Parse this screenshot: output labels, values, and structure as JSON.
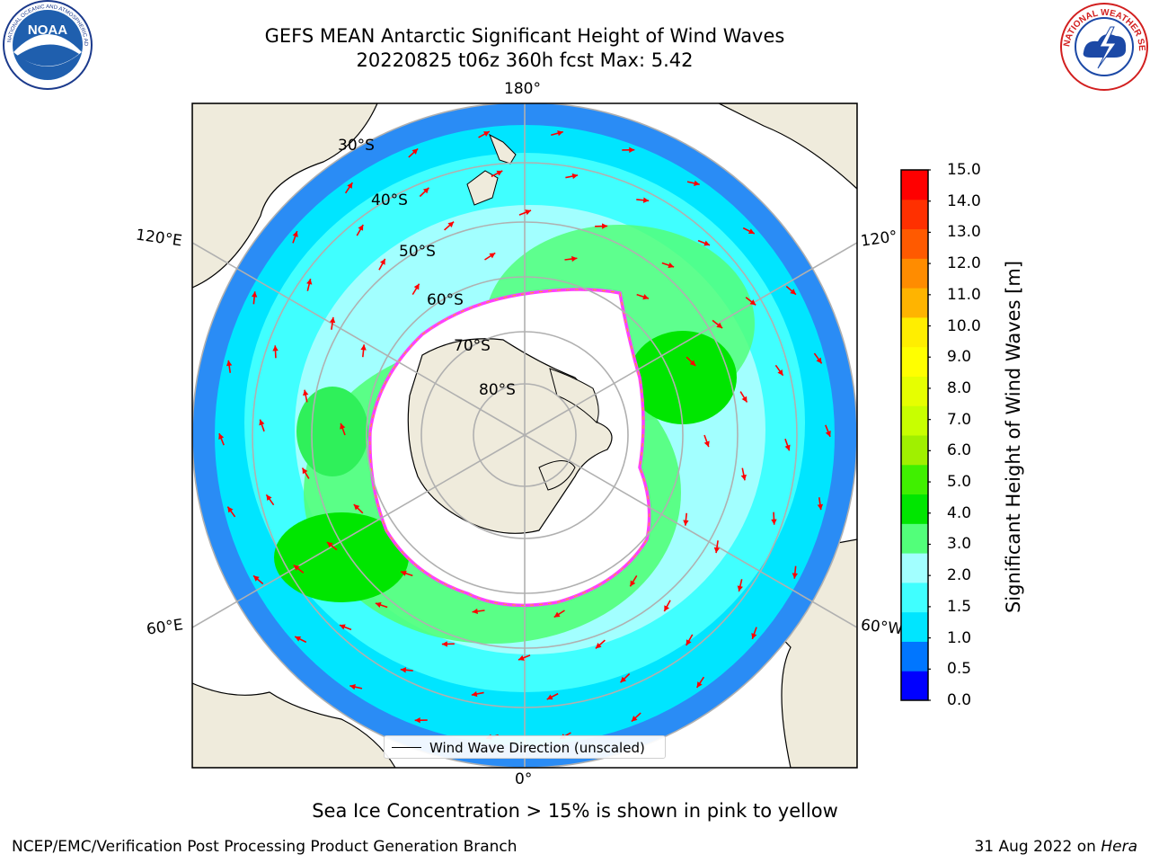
{
  "header": {
    "title_line1": "GEFS MEAN Antarctic Significant Height of Wind Waves",
    "title_line2": "20220825 t06z 360h fcst   Max: 5.42",
    "left_logo": "noaa-logo",
    "right_logo": "national-weather-service-logo",
    "left_logo_text": "NOAA",
    "left_logo_ring": "NATIONAL OCEANIC AND ATMOSPHERIC ADMINISTRATION · U.S. DEPARTMENT OF COMMERCE",
    "right_logo_ring": "NATIONAL WEATHER SERVICE"
  },
  "map": {
    "projection": "south-polar-stereographic",
    "longitude_labels": {
      "top": "180°",
      "bottom": "0°",
      "left_upper": "120°E",
      "left_lower": "60°E",
      "right_upper": "120°",
      "right_lower": "60°W"
    },
    "latitude_labels": [
      "30°S",
      "40°S",
      "50°S",
      "60°S",
      "70°S",
      "80°S"
    ],
    "colors": {
      "land": "#efebdc",
      "ice_free_ocean_core": "#ffffff",
      "ice_edge": "#ff40ff",
      "vector": "#ff0000",
      "gridline": "#b0b0b0"
    }
  },
  "colorbar": {
    "label": "Significant Height of Wind Waves [m]",
    "ticks": [
      "15.0",
      "14.0",
      "13.0",
      "12.0",
      "11.0",
      "10.0",
      "9.0",
      "8.0",
      "7.0",
      "6.0",
      "5.0",
      "4.0",
      "3.0",
      "2.0",
      "1.5",
      "1.0",
      "0.5",
      "0.0"
    ],
    "colors_bottom_to_top": [
      "#0000ff",
      "#0076ff",
      "#00e5ff",
      "#40ffff",
      "#a2ffff",
      "#52ff7a",
      "#00e600",
      "#40f000",
      "#a0f000",
      "#c8ff00",
      "#e6ff00",
      "#ffff00",
      "#ffee00",
      "#ffb400",
      "#ff8c00",
      "#ff5a00",
      "#ff3000",
      "#ff0000"
    ]
  },
  "legend": {
    "label": "Wind Wave Direction (unscaled)"
  },
  "footer": {
    "note": "Sea Ice Concentration > 15% is shown in pink to yellow",
    "left": "NCEP/EMC/Verification Post Processing Product Generation Branch",
    "date": "31 Aug 2022 on",
    "machine": "Hera"
  }
}
